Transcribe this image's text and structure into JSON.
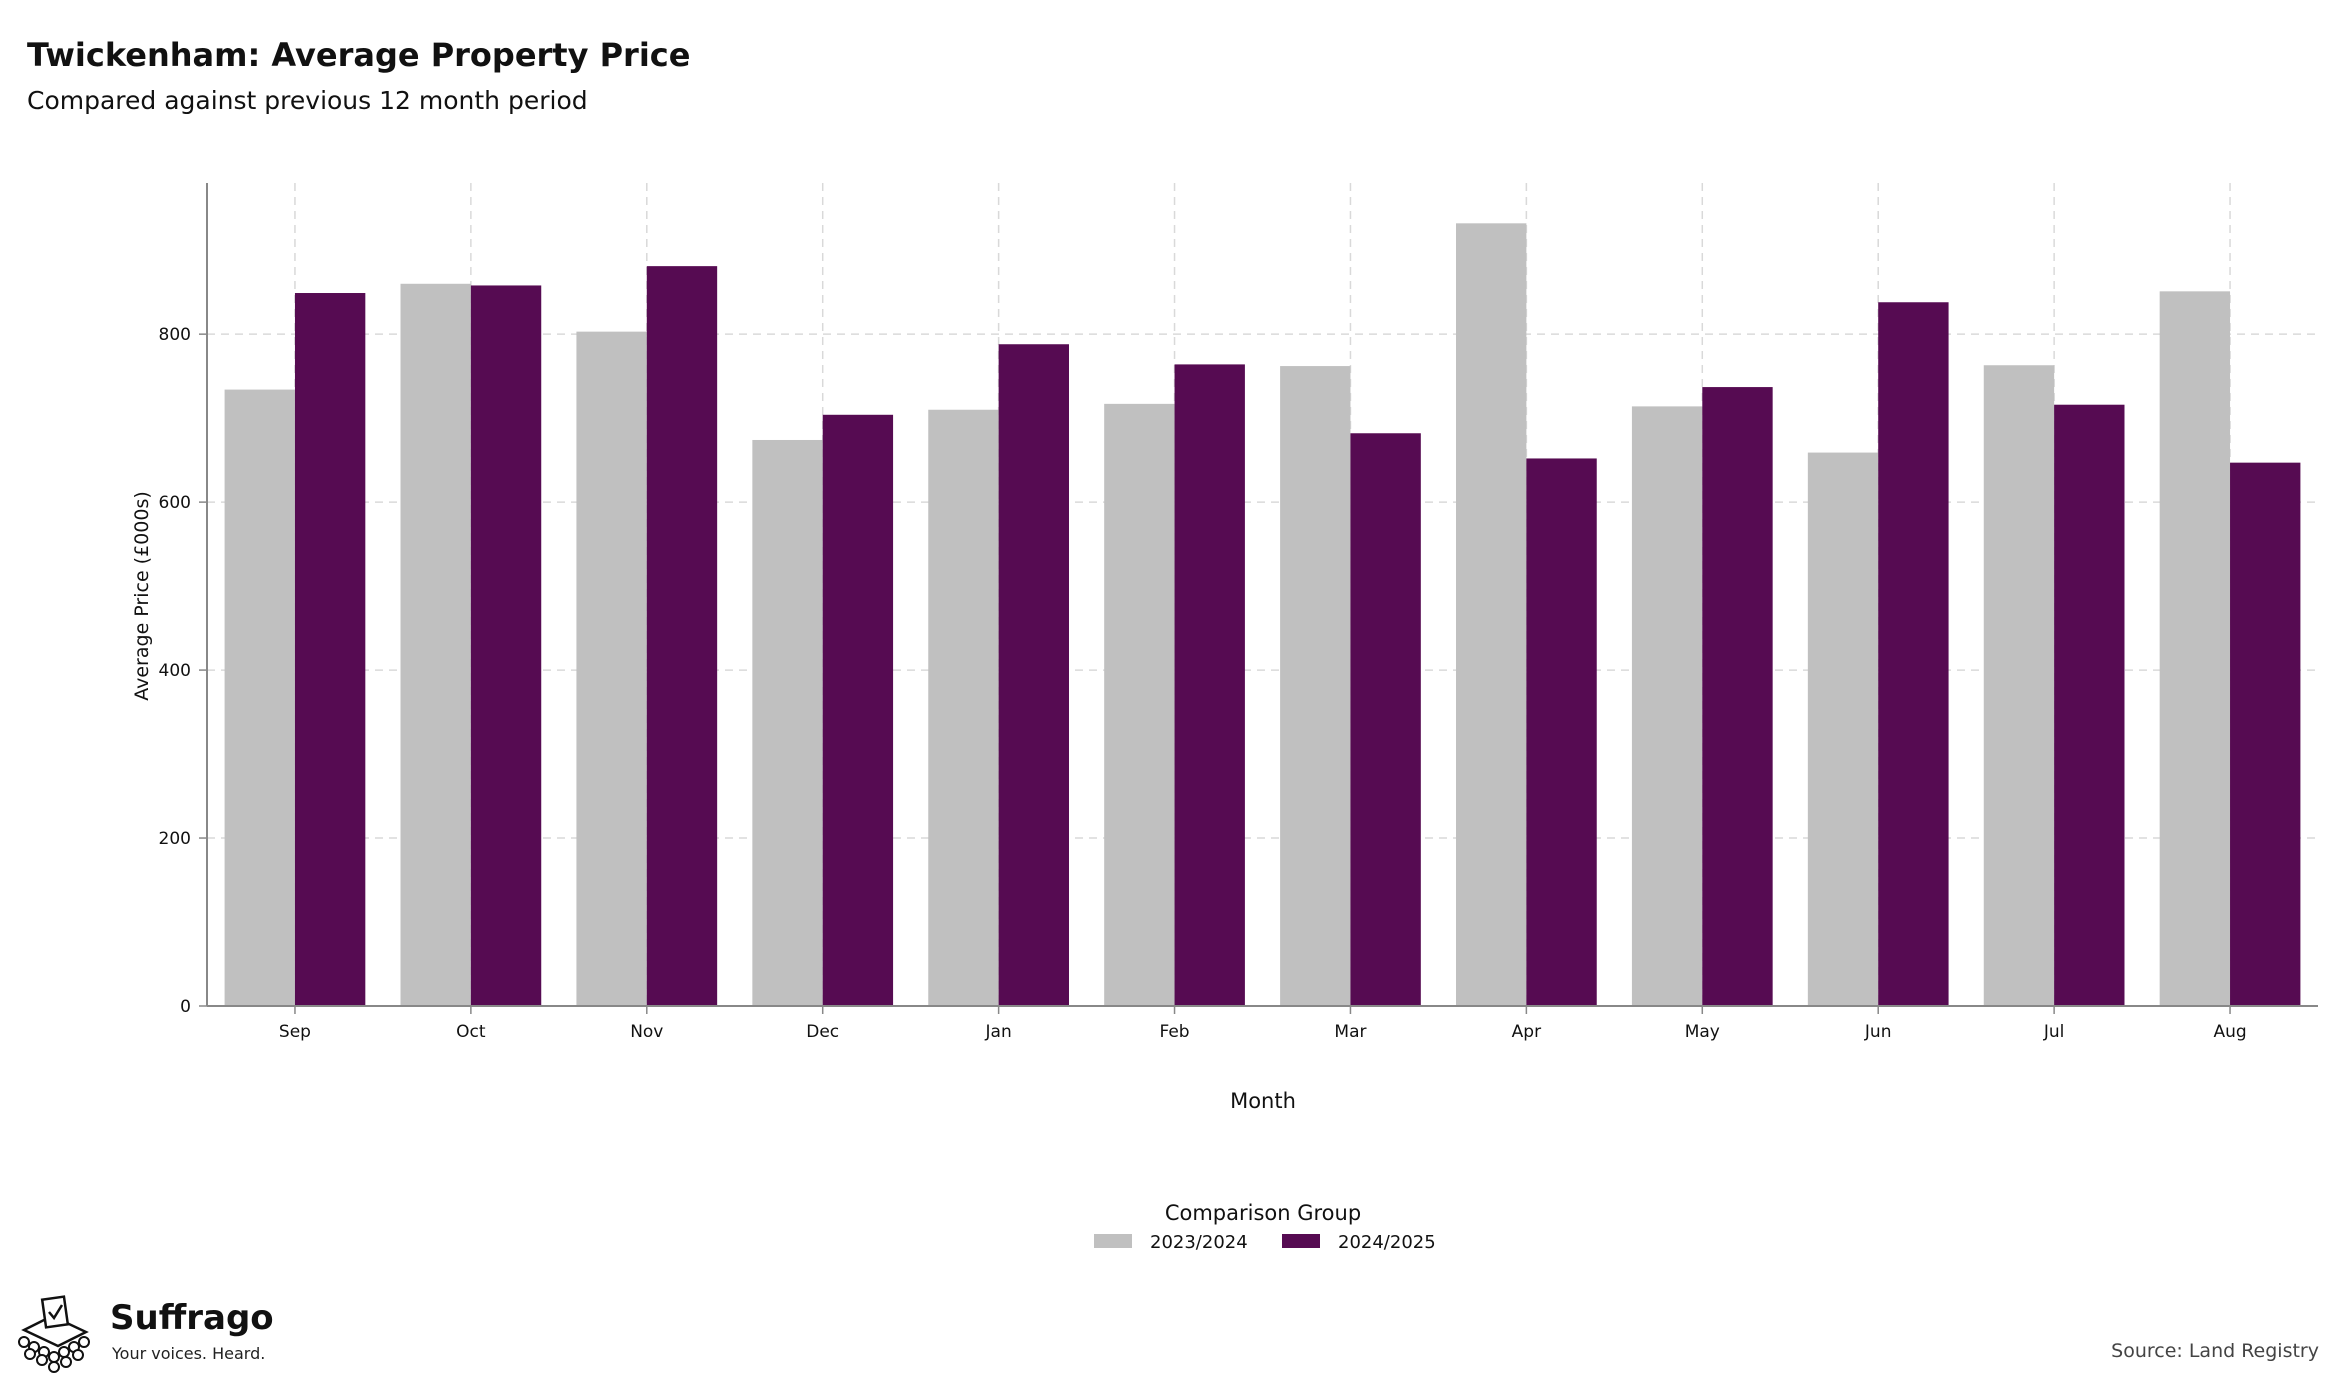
{
  "header": {
    "title": "Twickenham: Average Property Price",
    "subtitle": "Compared against previous 12 month period"
  },
  "chart_data": {
    "type": "bar",
    "categories": [
      "Sep",
      "Oct",
      "Nov",
      "Dec",
      "Jan",
      "Feb",
      "Mar",
      "Apr",
      "May",
      "Jun",
      "Jul",
      "Aug"
    ],
    "series": [
      {
        "name": "2023/2024",
        "color": "#c0c0c0",
        "values": [
          734,
          860,
          803,
          674,
          710,
          717,
          762,
          932,
          714,
          659,
          763,
          851
        ]
      },
      {
        "name": "2024/2025",
        "color": "#560b52",
        "values": [
          849,
          858,
          881,
          704,
          788,
          764,
          682,
          652,
          737,
          838,
          716,
          647
        ]
      }
    ],
    "xlabel": "Month",
    "ylabel": "Average Price (£000s)",
    "ylim": [
      0,
      980
    ],
    "yticks": [
      0,
      200,
      400,
      600,
      800
    ],
    "grid": true,
    "legend": {
      "title": "Comparison Group",
      "placement": "bottom-center"
    }
  },
  "footer": {
    "brand_name": "Suffrago",
    "brand_tagline": "Your voices. Heard.",
    "source": "Source: Land Registry",
    "logo_icon": "ballot-box-icon"
  }
}
